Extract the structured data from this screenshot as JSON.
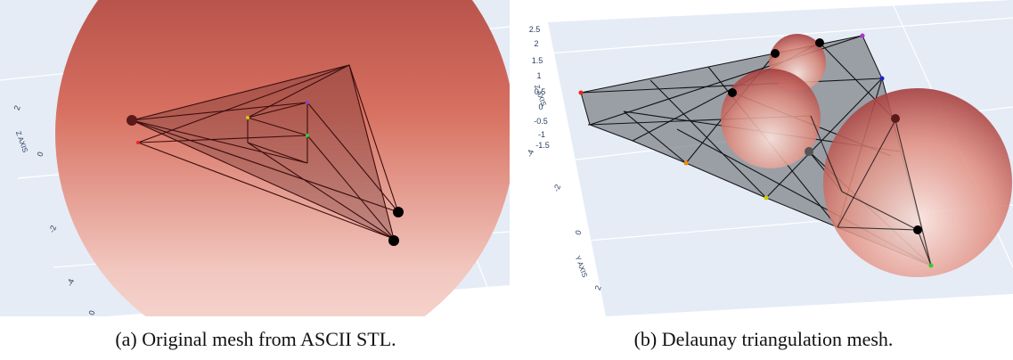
{
  "panels": [
    {
      "caption": "(a) Original mesh from ASCII STL.",
      "axis_labels": [
        "Z AXIS"
      ],
      "ticks": [
        "2",
        "0",
        "-2",
        "-4",
        "0"
      ]
    },
    {
      "caption": "(b) Delaunay triangulation mesh.",
      "axis_labels": [
        "Z AXIS",
        "Y AXIS"
      ],
      "ticks": [
        "2.5",
        "2",
        "1.5",
        "1",
        "0.5",
        "0",
        "-0.5",
        "-1",
        "-1.5",
        "-4",
        "-2",
        "0",
        "2"
      ]
    }
  ]
}
